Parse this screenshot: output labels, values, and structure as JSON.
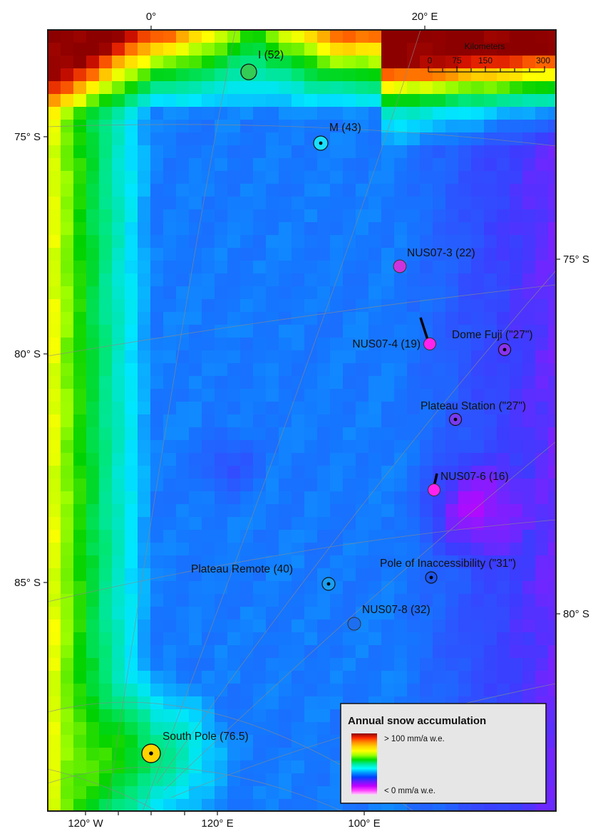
{
  "axes": {
    "top": [
      "0°",
      "20° E"
    ],
    "left": [
      "75° S",
      "80° S",
      "85° S"
    ],
    "right": [
      "75° S",
      "80° S"
    ],
    "bottom": [
      "120° W",
      "120° E",
      "100° E"
    ]
  },
  "scale_bar": {
    "title": "Kilometers",
    "ticks": [
      "0",
      "75",
      "150",
      "300"
    ],
    "ticks_km": [
      0,
      75,
      150,
      300
    ]
  },
  "stations": [
    {
      "label": "I (52)",
      "marker": "open-circle",
      "color": "#33cc55",
      "accumulation": 52
    },
    {
      "label": "M (43)",
      "marker": "dot-circle",
      "color": "#19e0ff",
      "accumulation": 43
    },
    {
      "label": "NUS07-3 (22)",
      "marker": "filled",
      "color": "#cc33dd",
      "accumulation": 22
    },
    {
      "label": "NUS07-4 (19)",
      "marker": "filled",
      "color": "#ff22ee",
      "accumulation": 19
    },
    {
      "label": "Dome Fuji (\"27\")",
      "marker": "dot-circle",
      "color": "#8a33ee",
      "accumulation": 27
    },
    {
      "label": "Plateau Station (\"27\")",
      "marker": "dot-circle",
      "color": "#7a3aee",
      "accumulation": 27
    },
    {
      "label": "NUS07-6 (16)",
      "marker": "filled",
      "color": "#ff22ee",
      "accumulation": 16
    },
    {
      "label": "Plateau Remote (40)",
      "marker": "dot-circle",
      "color": "#1a9ef0",
      "accumulation": 40
    },
    {
      "label": "Pole of Inaccessibility (\"31\")",
      "marker": "dot-circle",
      "color": "#1d55ee",
      "accumulation": 31
    },
    {
      "label": "NUS07-8 (32)",
      "marker": "filled",
      "color": "#1d6ff0",
      "accumulation": 32
    },
    {
      "label": "South Pole (76.5)",
      "marker": "dot-circle",
      "color": "#ffd200",
      "accumulation": 76.5
    }
  ],
  "legend": {
    "title": "Annual snow accumulation",
    "max_label": "> 100 mm/a w.e.",
    "min_label": "< 0 mm/a w.e.",
    "gradient": [
      "#8b0000",
      "#ff2a00",
      "#ff8c00",
      "#ffd200",
      "#ffff00",
      "#9cff00",
      "#00e000",
      "#00e8a0",
      "#00ffff",
      "#0096ff",
      "#0040ff",
      "#6a1bff",
      "#c000ff",
      "#ff40ff",
      "#ffd0ff"
    ]
  },
  "colors": {
    "frame": "#1a1a1a",
    "graticule": "#8a8a8a"
  }
}
